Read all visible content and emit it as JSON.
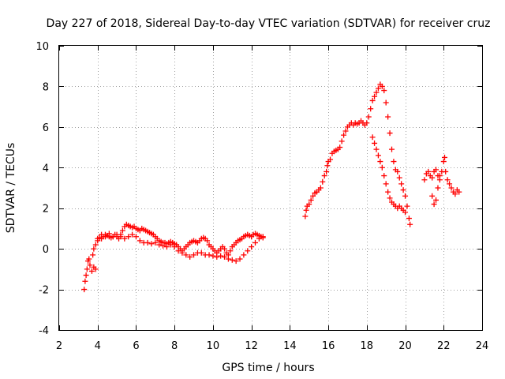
{
  "chart_data": {
    "type": "scatter",
    "title": "Day 227 of 2018, Sidereal Day-to-day VTEC variation (SDTVAR) for receiver cruz",
    "xlabel": "GPS time / hours",
    "ylabel": "SDTVAR / TECUs",
    "xlim": [
      2,
      24
    ],
    "ylim": [
      -4,
      10
    ],
    "x_ticks": [
      "2",
      "4",
      "6",
      "8",
      "10",
      "12",
      "14",
      "16",
      "18",
      "20",
      "22",
      "24"
    ],
    "y_ticks": [
      "-4",
      "-2",
      "0",
      "2",
      "4",
      "6",
      "8",
      "10"
    ],
    "grid": true,
    "marker": "+",
    "series": [
      {
        "name": "SDTVAR",
        "color": "#ff0000",
        "segments": [
          [
            [
              3.3,
              -2.0
            ],
            [
              3.35,
              -1.6
            ],
            [
              3.4,
              -1.3
            ],
            [
              3.45,
              -1.0
            ],
            [
              3.5,
              -0.6
            ],
            [
              3.55,
              -0.5
            ],
            [
              3.6,
              -0.8
            ],
            [
              3.7,
              -1.1
            ],
            [
              3.8,
              -0.9
            ],
            [
              3.9,
              -1.0
            ],
            [
              3.75,
              -0.3
            ],
            [
              3.8,
              0.0
            ],
            [
              3.9,
              0.2
            ],
            [
              4.0,
              0.4
            ],
            [
              4.1,
              0.55
            ],
            [
              4.2,
              0.5
            ],
            [
              4.3,
              0.6
            ],
            [
              4.4,
              0.7
            ],
            [
              4.5,
              0.65
            ],
            [
              4.6,
              0.6
            ],
            [
              4.7,
              0.55
            ],
            [
              4.8,
              0.6
            ],
            [
              4.9,
              0.7
            ],
            [
              5.0,
              0.6
            ],
            [
              5.1,
              0.5
            ],
            [
              5.2,
              0.7
            ],
            [
              5.3,
              0.9
            ],
            [
              5.4,
              1.1
            ],
            [
              5.5,
              1.2
            ],
            [
              5.6,
              1.15
            ],
            [
              5.7,
              1.1
            ],
            [
              5.8,
              1.05
            ],
            [
              5.9,
              1.1
            ],
            [
              6.0,
              1.0
            ],
            [
              6.1,
              0.95
            ],
            [
              6.2,
              0.9
            ],
            [
              6.3,
              1.0
            ],
            [
              6.4,
              0.95
            ],
            [
              6.5,
              0.9
            ],
            [
              6.6,
              0.85
            ],
            [
              6.7,
              0.8
            ],
            [
              6.8,
              0.75
            ],
            [
              6.9,
              0.7
            ],
            [
              7.0,
              0.6
            ],
            [
              7.1,
              0.5
            ],
            [
              7.2,
              0.4
            ],
            [
              7.3,
              0.35
            ],
            [
              7.4,
              0.3
            ],
            [
              7.5,
              0.3
            ],
            [
              7.6,
              0.25
            ],
            [
              7.7,
              0.3
            ],
            [
              7.8,
              0.35
            ],
            [
              7.9,
              0.3
            ],
            [
              8.0,
              0.25
            ],
            [
              8.1,
              0.2
            ],
            [
              8.2,
              0.1
            ],
            [
              8.3,
              0.0
            ],
            [
              8.4,
              -0.1
            ],
            [
              8.5,
              0.0
            ],
            [
              8.6,
              0.1
            ],
            [
              8.7,
              0.2
            ],
            [
              8.8,
              0.3
            ],
            [
              8.9,
              0.35
            ],
            [
              9.0,
              0.4
            ],
            [
              9.1,
              0.35
            ],
            [
              9.2,
              0.3
            ],
            [
              9.3,
              0.4
            ],
            [
              9.4,
              0.5
            ],
            [
              9.5,
              0.55
            ],
            [
              9.6,
              0.5
            ],
            [
              9.7,
              0.4
            ],
            [
              9.8,
              0.2
            ],
            [
              9.9,
              0.1
            ],
            [
              10.0,
              0.0
            ],
            [
              10.1,
              -0.1
            ],
            [
              10.2,
              -0.2
            ],
            [
              10.3,
              -0.1
            ],
            [
              10.4,
              0.0
            ],
            [
              10.5,
              0.1
            ],
            [
              10.6,
              0.0
            ],
            [
              10.7,
              -0.2
            ],
            [
              10.8,
              -0.3
            ],
            [
              10.9,
              -0.1
            ],
            [
              11.0,
              0.1
            ],
            [
              11.1,
              0.2
            ],
            [
              11.2,
              0.3
            ],
            [
              11.3,
              0.4
            ],
            [
              11.4,
              0.45
            ],
            [
              11.5,
              0.5
            ],
            [
              11.6,
              0.6
            ],
            [
              11.7,
              0.65
            ],
            [
              11.8,
              0.7
            ],
            [
              11.9,
              0.65
            ],
            [
              12.0,
              0.6
            ],
            [
              12.1,
              0.7
            ],
            [
              12.2,
              0.75
            ],
            [
              12.3,
              0.7
            ],
            [
              12.4,
              0.65
            ],
            [
              12.5,
              0.6
            ],
            [
              12.6,
              0.55
            ]
          ],
          [
            [
              4.0,
              0.5
            ],
            [
              4.2,
              0.7
            ],
            [
              4.4,
              0.6
            ],
            [
              4.6,
              0.75
            ],
            [
              4.8,
              0.6
            ],
            [
              5.0,
              0.7
            ],
            [
              5.2,
              0.6
            ],
            [
              5.4,
              0.5
            ],
            [
              5.6,
              0.6
            ],
            [
              5.8,
              0.7
            ],
            [
              6.0,
              0.6
            ],
            [
              6.2,
              0.4
            ],
            [
              6.4,
              0.3
            ],
            [
              6.6,
              0.3
            ],
            [
              6.8,
              0.25
            ],
            [
              7.0,
              0.3
            ],
            [
              7.2,
              0.2
            ],
            [
              7.4,
              0.15
            ],
            [
              7.6,
              0.1
            ],
            [
              7.8,
              0.2
            ],
            [
              8.0,
              0.1
            ],
            [
              8.2,
              -0.1
            ],
            [
              8.4,
              -0.2
            ],
            [
              8.6,
              -0.3
            ],
            [
              8.8,
              -0.4
            ],
            [
              9.0,
              -0.3
            ],
            [
              9.2,
              -0.2
            ],
            [
              9.4,
              -0.2
            ],
            [
              9.6,
              -0.3
            ],
            [
              9.8,
              -0.3
            ],
            [
              10.0,
              -0.35
            ],
            [
              10.2,
              -0.4
            ],
            [
              10.4,
              -0.35
            ],
            [
              10.6,
              -0.4
            ],
            [
              10.8,
              -0.5
            ],
            [
              11.0,
              -0.55
            ],
            [
              11.2,
              -0.6
            ],
            [
              11.4,
              -0.5
            ],
            [
              11.6,
              -0.3
            ],
            [
              11.8,
              -0.1
            ],
            [
              12.0,
              0.1
            ],
            [
              12.2,
              0.3
            ],
            [
              12.4,
              0.5
            ],
            [
              12.6,
              0.6
            ]
          ],
          [
            [
              14.8,
              1.6
            ],
            [
              14.85,
              1.9
            ],
            [
              14.9,
              2.1
            ],
            [
              15.0,
              2.2
            ],
            [
              15.1,
              2.4
            ],
            [
              15.2,
              2.6
            ],
            [
              15.3,
              2.75
            ],
            [
              15.4,
              2.8
            ],
            [
              15.5,
              2.9
            ],
            [
              15.6,
              3.0
            ],
            [
              15.7,
              3.3
            ],
            [
              15.8,
              3.6
            ],
            [
              15.9,
              3.8
            ],
            [
              15.95,
              4.1
            ],
            [
              16.0,
              4.3
            ],
            [
              16.1,
              4.4
            ],
            [
              16.2,
              4.7
            ],
            [
              16.3,
              4.8
            ],
            [
              16.4,
              4.85
            ],
            [
              16.5,
              4.9
            ],
            [
              16.6,
              5.0
            ],
            [
              16.7,
              5.3
            ],
            [
              16.8,
              5.6
            ],
            [
              16.9,
              5.8
            ],
            [
              17.0,
              6.0
            ],
            [
              17.1,
              6.1
            ],
            [
              17.2,
              6.2
            ],
            [
              17.3,
              6.1
            ],
            [
              17.4,
              6.2
            ],
            [
              17.5,
              6.15
            ],
            [
              17.6,
              6.2
            ],
            [
              17.7,
              6.3
            ],
            [
              17.8,
              6.2
            ],
            [
              17.9,
              6.1
            ],
            [
              18.0,
              6.2
            ],
            [
              18.1,
              6.5
            ],
            [
              18.2,
              6.9
            ],
            [
              18.3,
              7.3
            ],
            [
              18.4,
              7.5
            ],
            [
              18.5,
              7.7
            ],
            [
              18.6,
              7.9
            ],
            [
              18.7,
              8.1
            ],
            [
              18.8,
              8.0
            ],
            [
              18.9,
              7.8
            ],
            [
              19.0,
              7.2
            ],
            [
              19.1,
              6.5
            ],
            [
              19.2,
              5.7
            ],
            [
              19.3,
              4.9
            ],
            [
              19.4,
              4.3
            ],
            [
              19.5,
              3.9
            ],
            [
              19.6,
              3.8
            ],
            [
              19.7,
              3.5
            ],
            [
              19.8,
              3.2
            ],
            [
              19.9,
              2.9
            ],
            [
              20.0,
              2.6
            ],
            [
              20.1,
              2.1
            ],
            [
              20.2,
              1.5
            ],
            [
              20.25,
              1.2
            ]
          ],
          [
            [
              18.3,
              5.5
            ],
            [
              18.4,
              5.2
            ],
            [
              18.5,
              4.9
            ],
            [
              18.6,
              4.6
            ],
            [
              18.7,
              4.3
            ],
            [
              18.8,
              4.0
            ],
            [
              18.9,
              3.6
            ],
            [
              19.0,
              3.2
            ],
            [
              19.1,
              2.8
            ],
            [
              19.2,
              2.5
            ],
            [
              19.3,
              2.3
            ],
            [
              19.4,
              2.2
            ],
            [
              19.5,
              2.1
            ],
            [
              19.6,
              2.0
            ],
            [
              19.7,
              2.1
            ],
            [
              19.8,
              2.0
            ],
            [
              19.9,
              1.9
            ],
            [
              20.0,
              1.8
            ]
          ],
          [
            [
              21.0,
              3.4
            ],
            [
              21.1,
              3.7
            ],
            [
              21.2,
              3.8
            ],
            [
              21.3,
              3.6
            ],
            [
              21.4,
              3.5
            ],
            [
              21.5,
              3.8
            ],
            [
              21.6,
              3.9
            ],
            [
              21.7,
              3.6
            ],
            [
              21.8,
              3.4
            ],
            [
              21.9,
              3.8
            ],
            [
              22.0,
              4.3
            ],
            [
              22.05,
              4.5
            ],
            [
              22.1,
              3.8
            ],
            [
              22.2,
              3.4
            ],
            [
              22.3,
              3.2
            ],
            [
              22.4,
              3.0
            ],
            [
              22.5,
              2.8
            ],
            [
              22.6,
              2.7
            ],
            [
              22.7,
              2.9
            ],
            [
              22.8,
              2.8
            ],
            [
              21.4,
              2.6
            ],
            [
              21.5,
              2.2
            ],
            [
              21.6,
              2.4
            ],
            [
              21.7,
              3.0
            ],
            [
              21.8,
              3.6
            ]
          ]
        ]
      }
    ]
  }
}
